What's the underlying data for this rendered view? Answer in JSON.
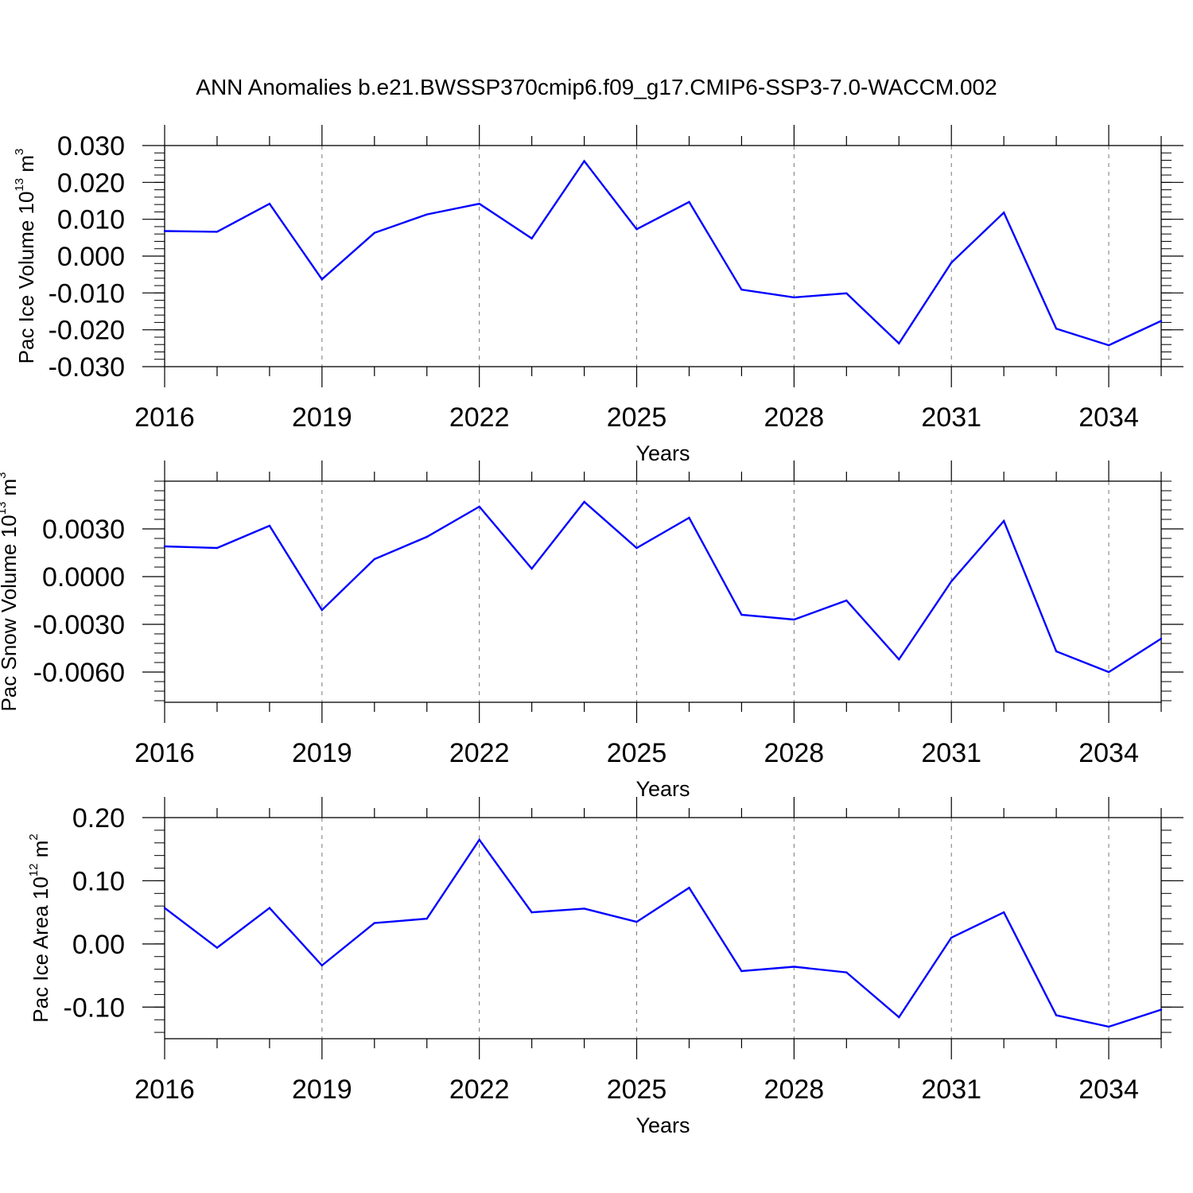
{
  "figure_title": "ANN Anomalies b.e21.BWSSP370cmip6.f09_g17.CMIP6-SSP3-7.0-WACCM.002",
  "colors": {
    "line": "#0000ff",
    "axis": "#000000",
    "grid": "#777777"
  },
  "chart_data": [
    {
      "type": "line",
      "title": "",
      "xlabel": "Years",
      "ylabel": {
        "text": "Pac Ice Volume 10",
        "exp": "13",
        "unit": " m",
        "unit_exp": "3"
      },
      "xlim": [
        2016,
        2035
      ],
      "ylim": [
        -0.03,
        0.03
      ],
      "xticks": [
        "2016",
        "2019",
        "2022",
        "2025",
        "2028",
        "2031",
        "2034"
      ],
      "yticks": [
        "0.030",
        "0.020",
        "0.010",
        "0.000",
        "-0.010",
        "-0.020",
        "-0.030"
      ],
      "grid": "dashed vertical at major x ticks",
      "x": [
        2016,
        2017,
        2018,
        2019,
        2020,
        2021,
        2022,
        2023,
        2024,
        2025,
        2026,
        2027,
        2028,
        2029,
        2030,
        2031,
        2032,
        2033,
        2034,
        2035
      ],
      "values": [
        0.0068,
        0.0066,
        0.0142,
        -0.0063,
        0.0063,
        0.0113,
        0.0142,
        0.0048,
        0.0258,
        0.0073,
        0.0147,
        -0.0091,
        -0.0112,
        -0.0101,
        -0.0237,
        -0.0018,
        0.0118,
        -0.0197,
        -0.0242,
        -0.0176
      ]
    },
    {
      "type": "line",
      "title": "",
      "xlabel": "Years",
      "ylabel": {
        "text": "Pac Snow Volume 10",
        "exp": "13",
        "unit": " m",
        "unit_exp": "3"
      },
      "xlim": [
        2016,
        2035
      ],
      "ylim": [
        -0.0079,
        0.006
      ],
      "xticks": [
        "2016",
        "2019",
        "2022",
        "2025",
        "2028",
        "2031",
        "2034"
      ],
      "yticks": [
        "0.0030",
        "0.0000",
        "-0.0030",
        "-0.0060"
      ],
      "grid": "dashed vertical at major x ticks",
      "x": [
        2016,
        2017,
        2018,
        2019,
        2020,
        2021,
        2022,
        2023,
        2024,
        2025,
        2026,
        2027,
        2028,
        2029,
        2030,
        2031,
        2032,
        2033,
        2034,
        2035
      ],
      "values": [
        0.0019,
        0.0018,
        0.0032,
        -0.0021,
        0.0011,
        0.0025,
        0.0044,
        0.0005,
        0.0047,
        0.0018,
        0.0037,
        -0.0024,
        -0.0027,
        -0.0015,
        -0.0052,
        -0.0003,
        0.0035,
        -0.0047,
        -0.006,
        -0.0039
      ]
    },
    {
      "type": "line",
      "title": "",
      "xlabel": "Years",
      "ylabel": {
        "text": "Pac Ice Area 10",
        "exp": "12",
        "unit": " m",
        "unit_exp": "2"
      },
      "xlim": [
        2016,
        2035
      ],
      "ylim": [
        -0.15,
        0.2
      ],
      "xticks": [
        "2016",
        "2019",
        "2022",
        "2025",
        "2028",
        "2031",
        "2034"
      ],
      "yticks": [
        "0.20",
        "0.10",
        "0.00",
        "-0.10"
      ],
      "grid": "dashed vertical at major x ticks",
      "x": [
        2016,
        2017,
        2018,
        2019,
        2020,
        2021,
        2022,
        2023,
        2024,
        2025,
        2026,
        2027,
        2028,
        2029,
        2030,
        2031,
        2032,
        2033,
        2034,
        2035
      ],
      "values": [
        0.057,
        -0.006,
        0.057,
        -0.034,
        0.033,
        0.04,
        0.165,
        0.05,
        0.056,
        0.035,
        0.089,
        -0.043,
        -0.036,
        -0.045,
        -0.116,
        0.01,
        0.05,
        -0.113,
        -0.131,
        -0.104
      ]
    }
  ]
}
